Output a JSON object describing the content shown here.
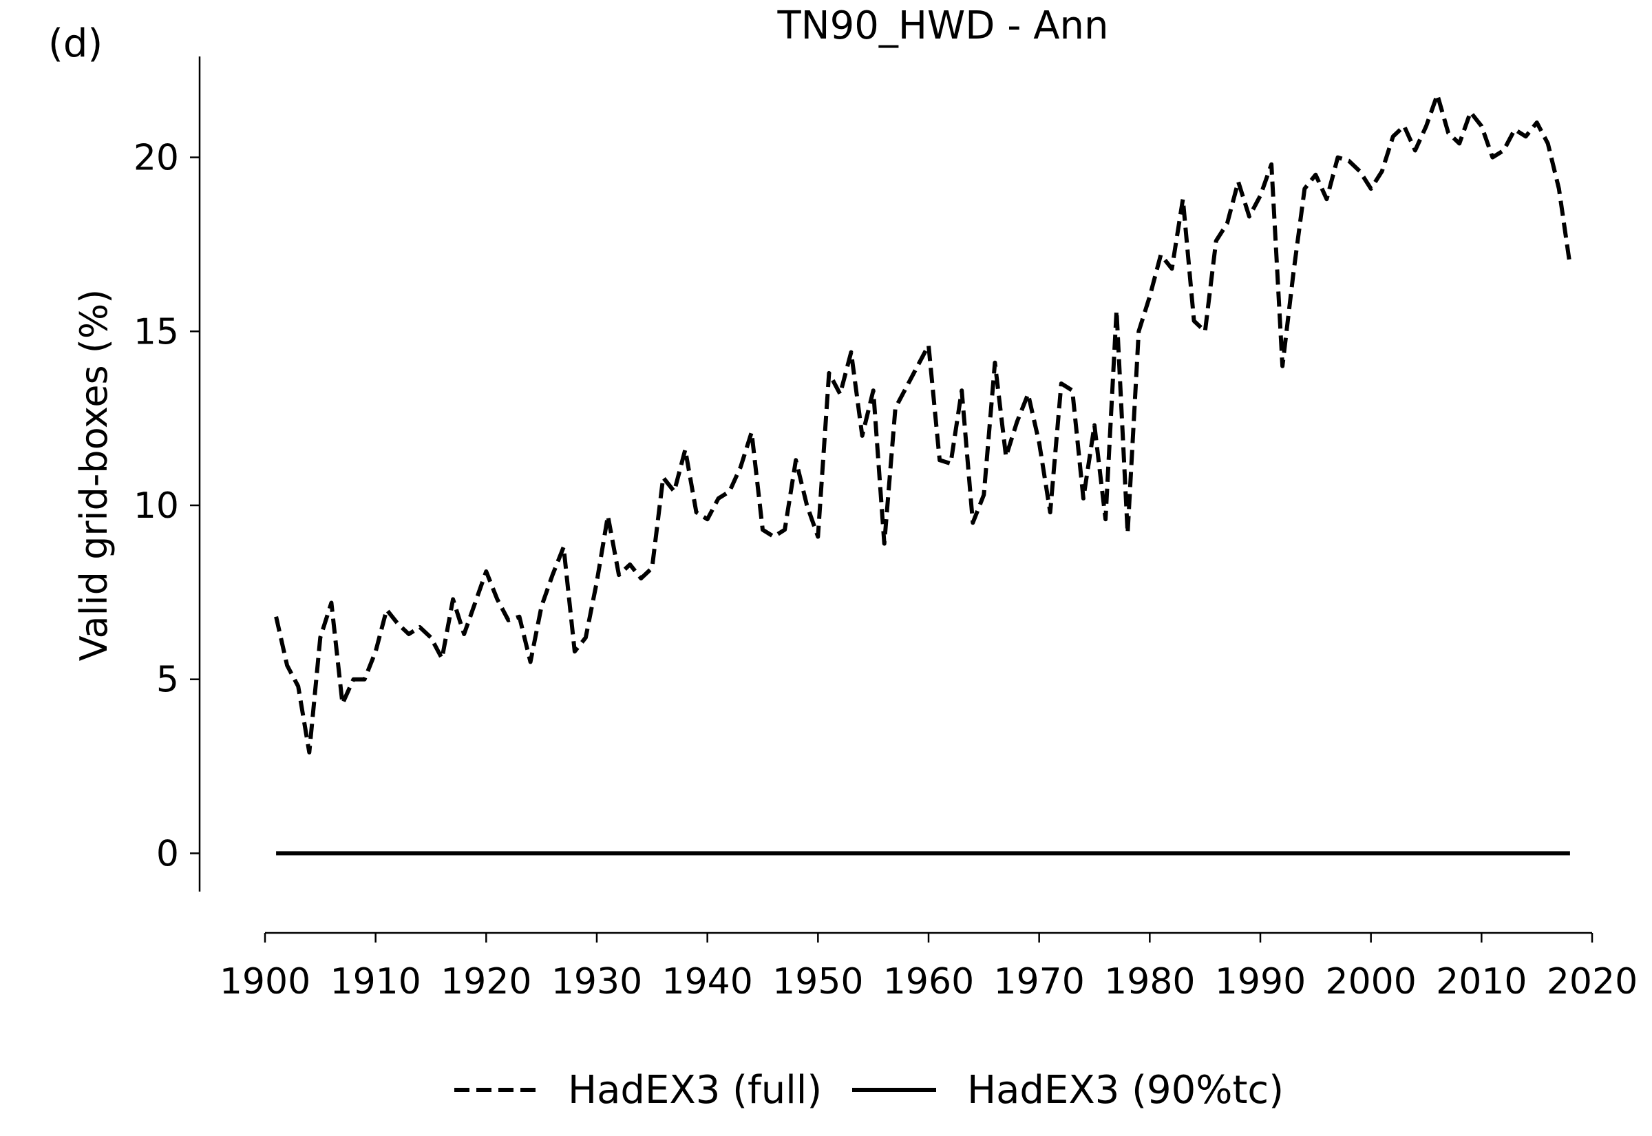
{
  "chart_data": {
    "type": "line",
    "panel_label": "(d)",
    "title": "TN90_HWD - Ann",
    "xlabel": "",
    "ylabel": "Valid grid-boxes (%)",
    "xlim": [
      1900,
      2020
    ],
    "ylim": [
      -1.1,
      22.9
    ],
    "x_ticks": [
      1900,
      1910,
      1920,
      1930,
      1940,
      1950,
      1960,
      1970,
      1980,
      1990,
      2000,
      2010,
      2020
    ],
    "y_ticks": [
      0,
      5,
      10,
      15,
      20
    ],
    "grid": false,
    "legend_position": "bottom-center",
    "x": [
      1901,
      1902,
      1903,
      1904,
      1905,
      1906,
      1907,
      1908,
      1909,
      1910,
      1911,
      1912,
      1913,
      1914,
      1915,
      1916,
      1917,
      1918,
      1919,
      1920,
      1921,
      1922,
      1923,
      1924,
      1925,
      1926,
      1927,
      1928,
      1929,
      1930,
      1931,
      1932,
      1933,
      1934,
      1935,
      1936,
      1937,
      1938,
      1939,
      1940,
      1941,
      1942,
      1943,
      1944,
      1945,
      1946,
      1947,
      1948,
      1949,
      1950,
      1951,
      1952,
      1953,
      1954,
      1955,
      1956,
      1957,
      1958,
      1959,
      1960,
      1961,
      1962,
      1963,
      1964,
      1965,
      1966,
      1967,
      1968,
      1969,
      1970,
      1971,
      1972,
      1973,
      1974,
      1975,
      1976,
      1977,
      1978,
      1979,
      1980,
      1981,
      1982,
      1983,
      1984,
      1985,
      1986,
      1987,
      1988,
      1989,
      1990,
      1991,
      1992,
      1993,
      1994,
      1995,
      1996,
      1997,
      1998,
      1999,
      2000,
      2001,
      2002,
      2003,
      2004,
      2005,
      2006,
      2007,
      2008,
      2009,
      2010,
      2011,
      2012,
      2013,
      2014,
      2015,
      2016,
      2017,
      2018
    ],
    "series": [
      {
        "name": "HadEX3 (full)",
        "style": "dashed",
        "color": "#000000",
        "values": [
          6.8,
          5.4,
          4.8,
          2.9,
          6.2,
          7.2,
          4.3,
          5.0,
          5.0,
          5.8,
          7.0,
          6.6,
          6.3,
          6.5,
          6.2,
          5.6,
          7.3,
          6.3,
          7.2,
          8.1,
          7.3,
          6.7,
          6.8,
          5.5,
          7.1,
          8.0,
          8.8,
          5.8,
          6.2,
          7.8,
          9.7,
          8.0,
          8.3,
          7.9,
          8.2,
          10.8,
          10.4,
          11.6,
          9.8,
          9.6,
          10.2,
          10.4,
          11.1,
          12.1,
          9.3,
          9.1,
          9.3,
          11.3,
          10.0,
          9.1,
          13.8,
          13.2,
          14.4,
          12.0,
          13.3,
          8.9,
          12.8,
          13.4,
          14.0,
          14.6,
          11.3,
          11.2,
          13.3,
          9.5,
          10.3,
          14.1,
          11.4,
          12.4,
          13.2,
          11.8,
          9.8,
          13.5,
          13.3,
          10.2,
          12.3,
          9.6,
          15.6,
          9.2,
          15.0,
          16.0,
          17.2,
          16.8,
          18.8,
          15.3,
          15.0,
          17.6,
          18.1,
          19.3,
          18.3,
          18.9,
          19.8,
          14.0,
          16.7,
          19.1,
          19.5,
          18.8,
          20.0,
          19.9,
          19.6,
          19.1,
          19.6,
          20.6,
          20.9,
          20.2,
          20.9,
          21.8,
          20.7,
          20.4,
          21.3,
          20.9,
          20.0,
          20.2,
          20.8,
          20.6,
          21.0,
          20.4,
          19.1,
          16.9
        ]
      },
      {
        "name": "HadEX3 (90%tc)",
        "style": "solid",
        "color": "#000000",
        "values": [
          0,
          0,
          0,
          0,
          0,
          0,
          0,
          0,
          0,
          0,
          0,
          0,
          0,
          0,
          0,
          0,
          0,
          0,
          0,
          0,
          0,
          0,
          0,
          0,
          0,
          0,
          0,
          0,
          0,
          0,
          0,
          0,
          0,
          0,
          0,
          0,
          0,
          0,
          0,
          0,
          0,
          0,
          0,
          0,
          0,
          0,
          0,
          0,
          0,
          0,
          0,
          0,
          0,
          0,
          0,
          0,
          0,
          0,
          0,
          0,
          0,
          0,
          0,
          0,
          0,
          0,
          0,
          0,
          0,
          0,
          0,
          0,
          0,
          0,
          0,
          0,
          0,
          0,
          0,
          0,
          0,
          0,
          0,
          0,
          0,
          0,
          0,
          0,
          0,
          0,
          0,
          0,
          0,
          0,
          0,
          0,
          0,
          0,
          0,
          0,
          0,
          0,
          0,
          0,
          0,
          0,
          0,
          0,
          0,
          0,
          0,
          0,
          0,
          0,
          0,
          0,
          0,
          0
        ]
      }
    ]
  }
}
